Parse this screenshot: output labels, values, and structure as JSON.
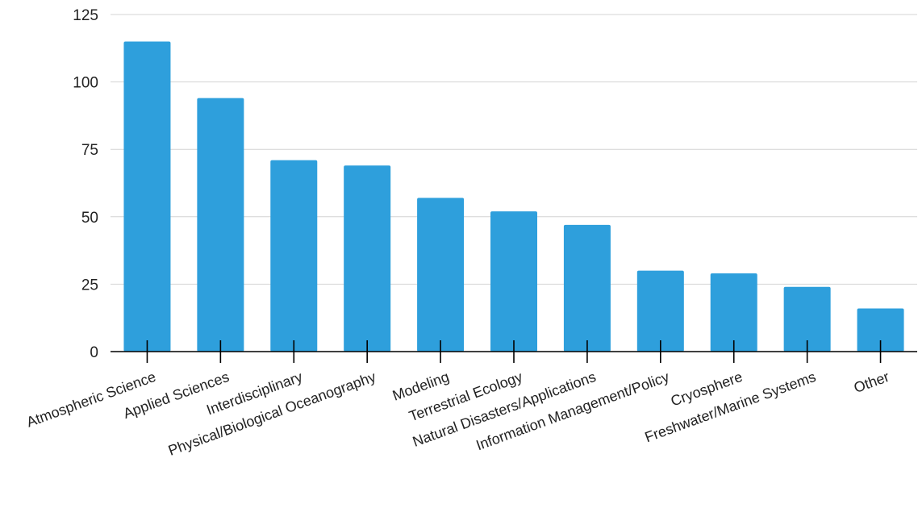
{
  "chart_data": {
    "type": "bar",
    "title": "",
    "xlabel": "",
    "ylabel": "",
    "categories": [
      "Atmospheric Science",
      "Applied Sciences",
      "Interdisciplinary",
      "Physical/Biological Oceanography",
      "Modeling",
      "Terrestrial Ecology",
      "Natural Disasters/Applications",
      "Information Management/Policy",
      "Cryosphere",
      "Freshwater/Marine Systems",
      "Other"
    ],
    "values": [
      115,
      94,
      71,
      69,
      57,
      52,
      47,
      30,
      29,
      24,
      16
    ],
    "ylim": [
      0,
      125
    ],
    "yticks": [
      0,
      25,
      50,
      75,
      100,
      125
    ],
    "grid": true,
    "legend": "none",
    "bar_color": "#2e9fdc"
  }
}
